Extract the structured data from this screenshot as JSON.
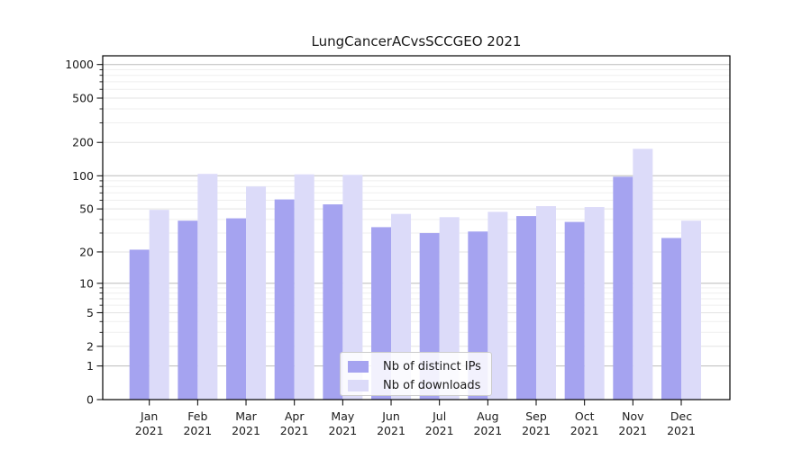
{
  "chart_data": {
    "type": "bar",
    "title": "LungCancerACvsSCCGEO 2021",
    "categories": [
      "Jan 2021",
      "Feb 2021",
      "Mar 2021",
      "Apr 2021",
      "May 2021",
      "Jun 2021",
      "Jul 2021",
      "Aug 2021",
      "Sep 2021",
      "Oct 2021",
      "Nov 2021",
      "Dec 2021"
    ],
    "series": [
      {
        "name": "Nb of distinct IPs",
        "color": "#a5a3f0",
        "values": [
          21,
          39,
          41,
          61,
          55,
          34,
          30,
          31,
          43,
          38,
          98,
          27
        ]
      },
      {
        "name": "Nb of downloads",
        "color": "#dcdbf9",
        "values": [
          49,
          104,
          80,
          103,
          102,
          45,
          42,
          47,
          53,
          52,
          175,
          39
        ]
      }
    ],
    "yscale": "log1p",
    "yticks": [
      0,
      1,
      2,
      5,
      10,
      20,
      50,
      100,
      200,
      500,
      1000
    ],
    "ylim": [
      0,
      1200
    ],
    "grid": "horizontal major and minor gridlines",
    "legend_position": "lower center",
    "colors": {
      "major_grid_power10": "#bbbbbb",
      "major_grid_other": "#e3e3e3",
      "minor_grid": "#efefef",
      "spine": "#000000",
      "text": "#1a1a1a"
    }
  }
}
